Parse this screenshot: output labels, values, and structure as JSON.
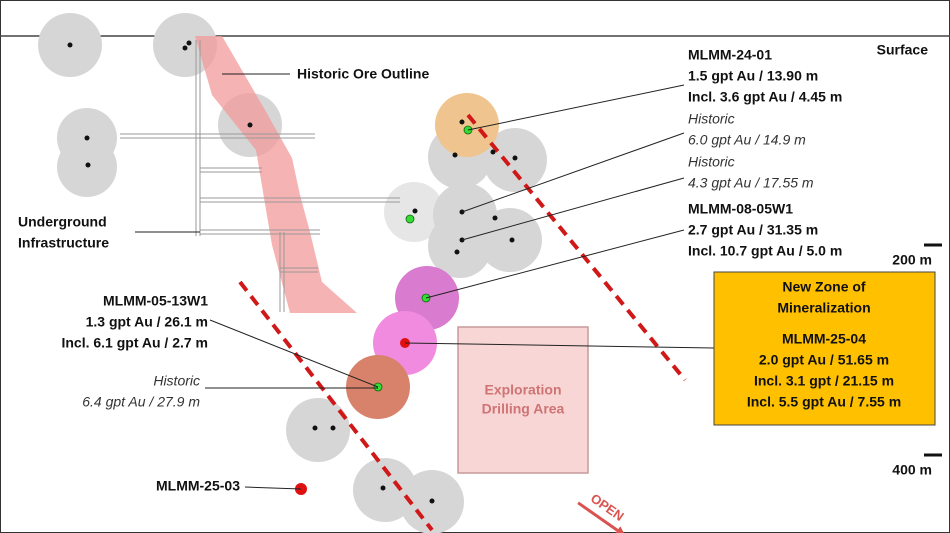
{
  "surface_label": "Surface",
  "depth_labels": [
    "200 m",
    "400 m"
  ],
  "ore_outline_label": "Historic Ore Outline",
  "infrastructure_label": [
    "Underground",
    "Infrastructure"
  ],
  "exploration_area": [
    "Exploration",
    "Drilling Area"
  ],
  "open_label": "OPEN",
  "holes": [
    {
      "lines": [
        "MLMM-24-01",
        "1.5 gpt Au / 13.90 m",
        "Incl. 3.6 gpt Au / 4.45 m"
      ]
    },
    {
      "lines": [
        "Historic",
        "6.0 gpt Au / 14.9 m"
      ]
    },
    {
      "lines": [
        "Historic",
        "4.3 gpt Au / 17.55 m"
      ]
    },
    {
      "lines": [
        "MLMM-08-05W1",
        "2.7 gpt Au / 31.35 m",
        "Incl. 10.7 gpt Au / 5.0 m"
      ]
    },
    {
      "lines": [
        "MLMM-05-13W1",
        "1.3 gpt Au / 26.1 m",
        "Incl. 6.1 gpt Au / 2.7 m"
      ]
    },
    {
      "lines": [
        "Historic",
        "6.4 gpt Au / 27.9 m"
      ]
    },
    {
      "lines": [
        "MLMM-25-03"
      ]
    }
  ],
  "new_zone": {
    "title": [
      "New Zone of",
      "Mineralization"
    ],
    "lines": [
      "MLMM-25-04",
      "2.0 gpt Au / 51.65 m",
      "Incl. 3.1 gpt / 21.15 m",
      "Incl. 5.5 gpt Au / 7.55 m"
    ]
  }
}
